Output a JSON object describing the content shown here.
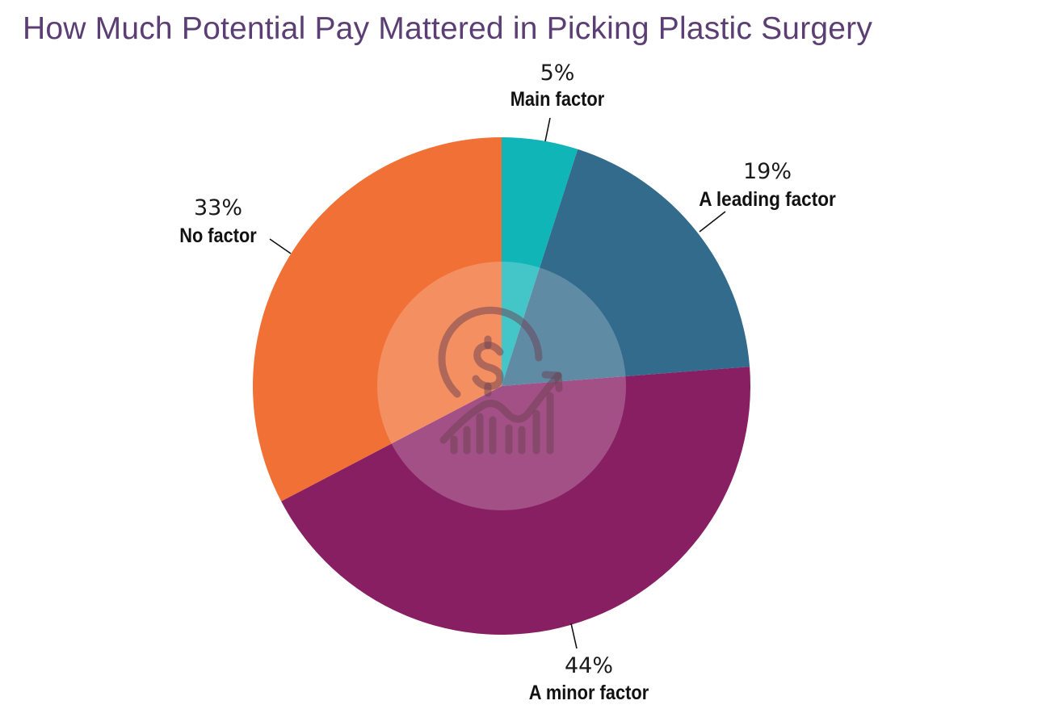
{
  "chart_data": {
    "type": "pie",
    "title": "How Much Potential Pay Mattered in Picking Plastic Surgery",
    "slices": [
      {
        "label": "Main factor",
        "value": 5,
        "display": "5%",
        "color": "#10b5b8"
      },
      {
        "label": "A leading factor",
        "value": 19,
        "display": "19%",
        "color": "#336b8c"
      },
      {
        "label": "A minor factor",
        "value": 44,
        "display": "44%",
        "color": "#881f63"
      },
      {
        "label": "No factor",
        "value": 33,
        "display": "33%",
        "color": "#f07035"
      }
    ],
    "center_icon": "dollar-growth-icon"
  }
}
